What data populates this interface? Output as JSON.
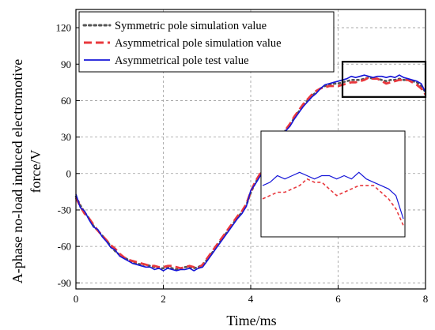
{
  "chart_data": {
    "type": "line",
    "xlabel": "Time/ms",
    "ylabel_line1": "A-phase no-load induced electromotive",
    "ylabel_line2": "force/V",
    "xlim": [
      0,
      8
    ],
    "ylim": [
      -95,
      135
    ],
    "xticks": [
      0,
      2,
      4,
      6,
      8
    ],
    "yticks": [
      -90,
      -60,
      -30,
      0,
      30,
      60,
      90,
      120
    ],
    "grid": true,
    "legend_position": "top-left",
    "zoom_window": {
      "x_range": [
        6.1,
        8.0
      ],
      "y_range": [
        63,
        92
      ]
    },
    "series": [
      {
        "name": "Symmetric pole simulation value",
        "color": "#555555",
        "style": "dotted",
        "x": [
          0,
          0.1,
          0.2,
          0.3,
          0.4,
          0.5,
          0.6,
          0.7,
          0.8,
          0.9,
          1.0,
          1.1,
          1.2,
          1.3,
          1.4,
          1.5,
          1.6,
          1.7,
          1.8,
          1.9,
          2.0,
          2.1,
          2.2,
          2.3,
          2.4,
          2.5,
          2.6,
          2.7,
          2.8,
          2.9,
          3.0,
          3.1,
          3.2,
          3.3,
          3.4,
          3.5,
          3.6,
          3.7,
          3.8,
          3.9,
          4.0,
          4.1,
          4.2,
          4.3,
          4.4,
          4.5,
          4.6,
          4.7,
          4.8,
          4.9,
          5.0,
          5.1,
          5.2,
          5.3,
          5.4,
          5.5,
          5.6,
          5.7,
          5.8,
          5.9,
          6.0,
          6.1,
          6.2,
          6.3,
          6.4,
          6.5,
          6.6,
          6.7,
          6.8,
          6.9,
          7.0,
          7.1,
          7.2,
          7.3,
          7.4,
          7.5,
          7.6,
          7.7,
          7.8,
          7.9,
          8.0
        ],
        "values": [
          -19,
          -26,
          -32,
          -37,
          -43,
          -47,
          -51,
          -55,
          -60,
          -64,
          -67,
          -69,
          -71,
          -73,
          -74,
          -75,
          -75,
          -76,
          -77,
          -78,
          -78,
          -77,
          -78,
          -79,
          -78,
          -77,
          -77,
          -78,
          -77,
          -75,
          -71,
          -66,
          -61,
          -56,
          -51,
          -46,
          -41,
          -36,
          -32,
          -26,
          -16,
          -8,
          -2,
          4,
          9,
          16,
          22,
          28,
          36,
          40,
          46,
          51,
          56,
          60,
          64,
          67,
          70,
          72,
          73,
          74,
          74,
          75,
          76,
          77,
          77,
          77,
          78,
          79,
          78,
          78,
          77,
          76,
          77,
          77,
          78,
          77,
          77,
          76,
          75,
          72,
          67
        ]
      },
      {
        "name": "Asymmetrical pole simulation value",
        "color": "#e8383d",
        "style": "dashed",
        "x": [
          0,
          0.1,
          0.2,
          0.3,
          0.4,
          0.5,
          0.6,
          0.7,
          0.8,
          0.9,
          1.0,
          1.1,
          1.2,
          1.3,
          1.4,
          1.5,
          1.6,
          1.7,
          1.8,
          1.9,
          2.0,
          2.1,
          2.2,
          2.3,
          2.4,
          2.5,
          2.6,
          2.7,
          2.8,
          2.9,
          3.0,
          3.1,
          3.2,
          3.3,
          3.4,
          3.5,
          3.6,
          3.7,
          3.8,
          3.9,
          4.0,
          4.1,
          4.2,
          4.3,
          4.4,
          4.5,
          4.6,
          4.7,
          4.8,
          4.9,
          5.0,
          5.1,
          5.2,
          5.3,
          5.4,
          5.5,
          5.6,
          5.7,
          5.8,
          5.9,
          6.0,
          6.1,
          6.2,
          6.3,
          6.4,
          6.5,
          6.6,
          6.7,
          6.8,
          6.9,
          7.0,
          7.1,
          7.2,
          7.3,
          7.4,
          7.5,
          7.6,
          7.7,
          7.8,
          7.9,
          8.0
        ],
        "values": [
          -20,
          -27,
          -33,
          -37,
          -42,
          -47,
          -51,
          -55,
          -59,
          -62,
          -66,
          -69,
          -71,
          -72,
          -73,
          -74,
          -75,
          -76,
          -76,
          -77,
          -77,
          -76,
          -76,
          -77,
          -78,
          -77,
          -76,
          -77,
          -78,
          -75,
          -70,
          -65,
          -60,
          -55,
          -50,
          -45,
          -40,
          -35,
          -31,
          -25,
          -15,
          -7,
          -1,
          5,
          10,
          17,
          23,
          29,
          36,
          41,
          47,
          52,
          57,
          61,
          65,
          68,
          70,
          71,
          72,
          72,
          72,
          73,
          74,
          75,
          75,
          76,
          77,
          79,
          78,
          78,
          76,
          74,
          75,
          76,
          77,
          77,
          77,
          75,
          73,
          70,
          65
        ]
      },
      {
        "name": "Asymmetrical pole test value",
        "color": "#1515d8",
        "style": "solid",
        "x": [
          0,
          0.1,
          0.2,
          0.3,
          0.4,
          0.5,
          0.6,
          0.7,
          0.8,
          0.9,
          1.0,
          1.1,
          1.2,
          1.3,
          1.4,
          1.5,
          1.6,
          1.7,
          1.8,
          1.9,
          2.0,
          2.1,
          2.2,
          2.3,
          2.4,
          2.5,
          2.6,
          2.7,
          2.8,
          2.9,
          3.0,
          3.1,
          3.2,
          3.3,
          3.4,
          3.5,
          3.6,
          3.7,
          3.8,
          3.9,
          4.0,
          4.1,
          4.2,
          4.3,
          4.4,
          4.5,
          4.6,
          4.7,
          4.8,
          4.9,
          5.0,
          5.1,
          5.2,
          5.3,
          5.4,
          5.5,
          5.6,
          5.7,
          5.8,
          5.9,
          6.0,
          6.1,
          6.2,
          6.3,
          6.4,
          6.5,
          6.6,
          6.7,
          6.8,
          6.9,
          7.0,
          7.1,
          7.2,
          7.3,
          7.4,
          7.5,
          7.6,
          7.7,
          7.8,
          7.9,
          8.0
        ],
        "values": [
          -17,
          -28,
          -31,
          -38,
          -44,
          -46,
          -52,
          -56,
          -61,
          -63,
          -68,
          -70,
          -72,
          -74,
          -75,
          -76,
          -77,
          -77,
          -79,
          -78,
          -80,
          -78,
          -79,
          -80,
          -79,
          -79,
          -78,
          -80,
          -78,
          -77,
          -72,
          -67,
          -62,
          -57,
          -52,
          -47,
          -42,
          -37,
          -33,
          -27,
          -14,
          -9,
          -3,
          3,
          8,
          15,
          21,
          27,
          35,
          39,
          45,
          50,
          55,
          59,
          63,
          66,
          70,
          73,
          74,
          75,
          76,
          77,
          78,
          80,
          79,
          80,
          81,
          80,
          79,
          80,
          80,
          79,
          80,
          79,
          81,
          79,
          78,
          77,
          76,
          74,
          67
        ]
      }
    ]
  }
}
